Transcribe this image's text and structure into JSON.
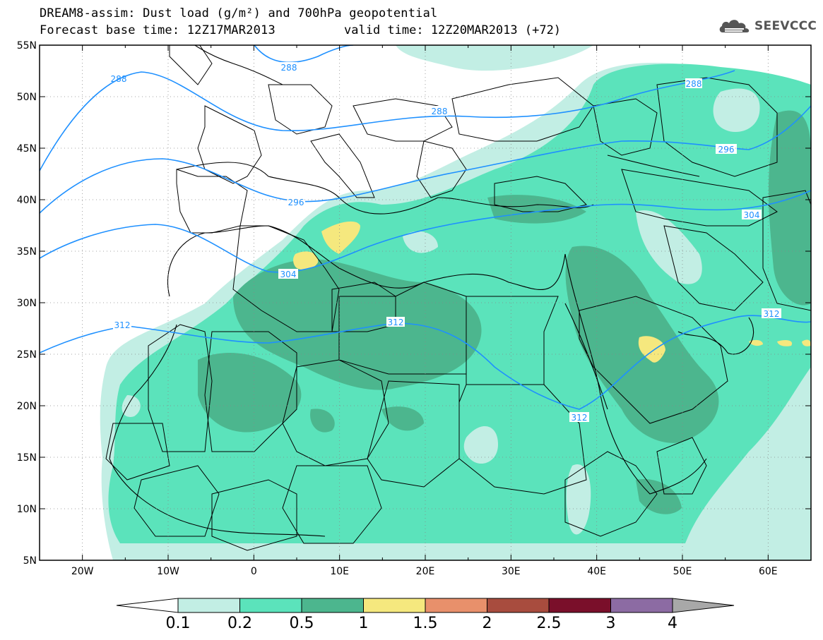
{
  "header": {
    "title": "DREAM8-assim: Dust load (g/m²) and 700hPa geopotential",
    "base_time": "Forecast base time: 12Z17MAR2013",
    "valid_time": "valid time: 12Z20MAR2013 (+72)",
    "logo_text": "SEEVCCC",
    "logo_icon": "cloud-icon"
  },
  "map": {
    "lon_range": [
      -25,
      65
    ],
    "lat_range": [
      5,
      55
    ],
    "lon_ticks": [
      "20W",
      "10W",
      "0",
      "10E",
      "20E",
      "30E",
      "40E",
      "50E",
      "60E"
    ],
    "lat_ticks": [
      "55N",
      "50N",
      "45N",
      "40N",
      "35N",
      "30N",
      "25N",
      "20N",
      "15N",
      "10N",
      "5N"
    ],
    "contour_color": "#1e90ff",
    "contour_labels": [
      "288",
      "288",
      "288",
      "288",
      "296",
      "296",
      "304",
      "304",
      "312",
      "312",
      "312",
      "312"
    ]
  },
  "colorbar": {
    "labels": [
      "0.1",
      "0.2",
      "0.5",
      "1",
      "1.5",
      "2",
      "2.5",
      "3",
      "4"
    ],
    "colors": [
      "#ffffff",
      "#c2eee4",
      "#5be3bb",
      "#4cb68e",
      "#f5e87e",
      "#e8906b",
      "#a84c3e",
      "#7a0f2a",
      "#8c6ba3",
      "#a8a8a8"
    ]
  }
}
